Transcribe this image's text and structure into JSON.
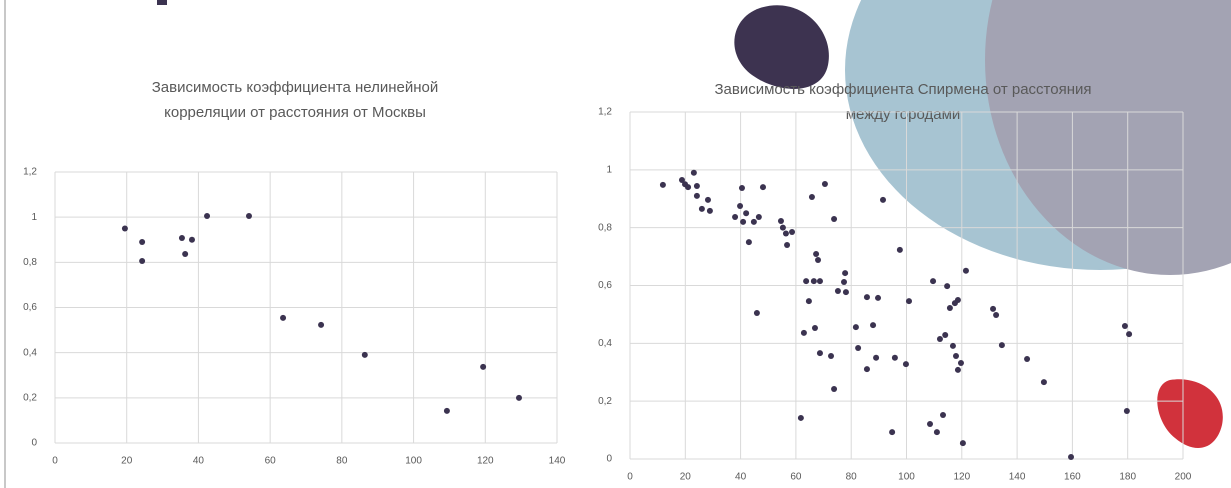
{
  "chart_data": [
    {
      "type": "scatter",
      "title": [
        "Зависимость коэффициента нелинейной",
        "корреляции от расстояния от Москвы"
      ],
      "color": "#3b3350",
      "grid": true,
      "xlim": [
        0,
        140
      ],
      "xticks": [
        0,
        20,
        40,
        60,
        80,
        100,
        120,
        140
      ],
      "ylim": [
        0,
        1.2
      ],
      "yticks": [
        0,
        {
          "value": 0.2,
          "label": "0,2"
        },
        {
          "value": 0.4,
          "label": "0,4"
        },
        {
          "value": 0.6,
          "label": "0,6"
        },
        {
          "value": 0.8,
          "label": "0,8"
        },
        1,
        {
          "value": 1.2,
          "label": "1,2"
        }
      ],
      "x": [
        19.5,
        24.3,
        24.3,
        35.4,
        36.3,
        38.2,
        42.4,
        54.1,
        63.6,
        74.2,
        86.4,
        109.3,
        119.4,
        129.4
      ],
      "values": [
        0.95,
        0.89,
        0.806,
        0.908,
        0.837,
        0.9,
        1.005,
        1.005,
        0.554,
        0.523,
        0.39,
        0.142,
        0.337,
        0.2
      ]
    },
    {
      "type": "scatter",
      "title": [
        "Зависимость коэффициента Спирмена от расстояния",
        "между городами"
      ],
      "color": "#3b3350",
      "grid": true,
      "xlim": [
        0,
        200
      ],
      "xticks": [
        0,
        20,
        40,
        60,
        80,
        100,
        120,
        140,
        160,
        180,
        200
      ],
      "ylim": [
        0,
        1.2
      ],
      "yticks": [
        0,
        {
          "value": 0.2,
          "label": "0,2"
        },
        {
          "value": 0.4,
          "label": "0,4"
        },
        {
          "value": 0.6,
          "label": "0,6"
        },
        {
          "value": 0.8,
          "label": "0,8"
        },
        1,
        {
          "value": 1.2,
          "label": "1,2"
        }
      ],
      "x": [
        11.9,
        18.8,
        19.9,
        21,
        23.1,
        24.2,
        24.2,
        26,
        28.2,
        28.9,
        38,
        39.8,
        40.5,
        40.9,
        42,
        43,
        44.8,
        45.9,
        46.6,
        48.1,
        54.6,
        55.3,
        56.4,
        56.8,
        58.6,
        61.8,
        62.9,
        63.7,
        64.7,
        65.8,
        66.5,
        66.9,
        67.3,
        68,
        68.7,
        68.7,
        70.5,
        72.7,
        73.8,
        73.8,
        75.2,
        77.4,
        77.8,
        78.1,
        81.7,
        82.5,
        85.7,
        85.7,
        87.9,
        89,
        89.7,
        91.5,
        94.8,
        95.8,
        97.6,
        99.8,
        100.9,
        108.5,
        109.6,
        111,
        112.1,
        113.2,
        114,
        114.7,
        115.7,
        116.8,
        117.5,
        117.9,
        118.6,
        118.6,
        119.7,
        120.4,
        121.5,
        131.3,
        132.4,
        134.5,
        143.6,
        149.7,
        159.5,
        179,
        180.5,
        179.7
      ],
      "values": [
        0.948,
        0.965,
        0.95,
        0.94,
        0.99,
        0.944,
        0.91,
        0.865,
        0.896,
        0.858,
        0.837,
        0.875,
        0.937,
        0.82,
        0.85,
        0.75,
        0.82,
        0.505,
        0.837,
        0.94,
        0.823,
        0.8,
        0.78,
        0.74,
        0.785,
        0.142,
        0.436,
        0.615,
        0.546,
        0.906,
        0.615,
        0.453,
        0.709,
        0.688,
        0.615,
        0.366,
        0.951,
        0.356,
        0.83,
        0.242,
        0.581,
        0.612,
        0.643,
        0.577,
        0.456,
        0.384,
        0.56,
        0.311,
        0.463,
        0.35,
        0.557,
        0.896,
        0.093,
        0.35,
        0.723,
        0.328,
        0.546,
        0.121,
        0.615,
        0.093,
        0.415,
        0.152,
        0.429,
        0.598,
        0.522,
        0.391,
        0.539,
        0.356,
        0.55,
        0.308,
        0.332,
        0.055,
        0.651,
        0.519,
        0.498,
        0.394,
        0.346,
        0.266,
        0.007,
        0.46,
        0.432,
        0.166
      ]
    }
  ]
}
